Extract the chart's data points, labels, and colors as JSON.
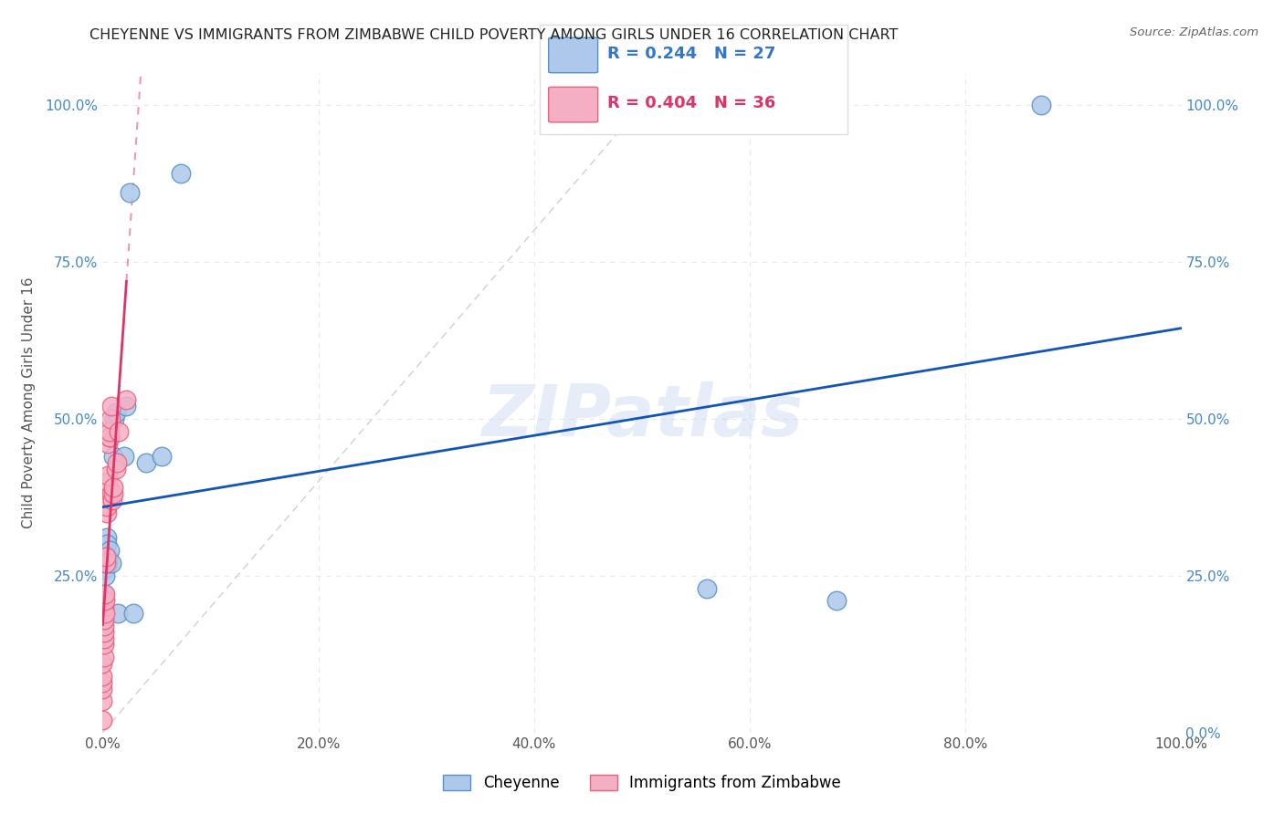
{
  "title": "CHEYENNE VS IMMIGRANTS FROM ZIMBABWE CHILD POVERTY AMONG GIRLS UNDER 16 CORRELATION CHART",
  "source": "Source: ZipAtlas.com",
  "ylabel": "Child Poverty Among Girls Under 16",
  "watermark": "ZIPatlas",
  "blue_label": "Cheyenne",
  "pink_label": "Immigrants from Zimbabwe",
  "blue_color": "#adc8ea",
  "pink_color": "#f5afc5",
  "blue_edge": "#5590cc",
  "pink_edge": "#e8607a",
  "trendline_blue": "#1155bb",
  "trendline_pink": "#dd3366",
  "trendline_gray": "#d0d0d0",
  "cheyenne_x": [
    0.001,
    0.001,
    0.001,
    0.002,
    0.002,
    0.003,
    0.003,
    0.004,
    0.004,
    0.005,
    0.005,
    0.006,
    0.008,
    0.01,
    0.011,
    0.012,
    0.014,
    0.02,
    0.022,
    0.025,
    0.028,
    0.04,
    0.055,
    0.072,
    0.56,
    0.68,
    0.87
  ],
  "cheyenne_y": [
    0.27,
    0.26,
    0.22,
    0.28,
    0.25,
    0.27,
    0.28,
    0.31,
    0.3,
    0.28,
    0.27,
    0.29,
    0.27,
    0.44,
    0.5,
    0.51,
    0.19,
    0.44,
    0.52,
    0.86,
    0.19,
    0.43,
    0.44,
    0.89,
    0.23,
    0.21,
    1.0
  ],
  "zimbabwe_x": [
    0.0,
    0.0,
    0.0,
    0.0,
    0.0,
    0.0,
    0.001,
    0.001,
    0.001,
    0.001,
    0.001,
    0.001,
    0.001,
    0.002,
    0.002,
    0.002,
    0.003,
    0.003,
    0.004,
    0.004,
    0.005,
    0.005,
    0.005,
    0.006,
    0.006,
    0.006,
    0.007,
    0.008,
    0.008,
    0.009,
    0.01,
    0.01,
    0.012,
    0.013,
    0.015,
    0.022
  ],
  "zimbabwe_y": [
    0.02,
    0.05,
    0.07,
    0.08,
    0.09,
    0.11,
    0.12,
    0.14,
    0.15,
    0.16,
    0.17,
    0.18,
    0.2,
    0.19,
    0.21,
    0.22,
    0.27,
    0.28,
    0.35,
    0.36,
    0.4,
    0.41,
    0.46,
    0.47,
    0.47,
    0.48,
    0.5,
    0.52,
    0.38,
    0.37,
    0.38,
    0.39,
    0.42,
    0.43,
    0.48,
    0.53
  ],
  "xlim": [
    0.0,
    1.0
  ],
  "ylim": [
    0.0,
    1.05
  ],
  "xticks": [
    0.0,
    0.2,
    0.4,
    0.6,
    0.8,
    1.0
  ],
  "yticks": [
    0.0,
    0.25,
    0.5,
    0.75,
    1.0
  ],
  "xticklabels": [
    "0.0%",
    "20.0%",
    "40.0%",
    "60.0%",
    "80.0%",
    "100.0%"
  ],
  "left_yticklabels": [
    "",
    "25.0%",
    "50.0%",
    "75.0%",
    "100.0%"
  ],
  "right_yticklabels": [
    "0.0%",
    "25.0%",
    "50.0%",
    "75.0%",
    "100.0%"
  ]
}
